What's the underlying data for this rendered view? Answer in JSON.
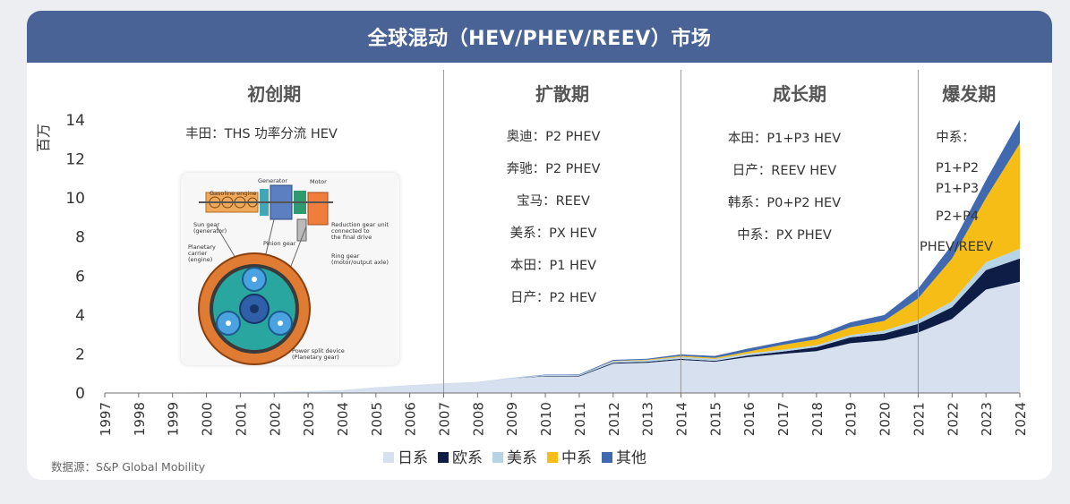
{
  "title": "全球混动（HEV/PHEV/REEV）市场",
  "source": "数据源：S&P Global Mobility",
  "colors": {
    "banner": "#4a6396",
    "japan": "#d6e0ef",
    "europe": "#0d1d46",
    "us": "#b7d3e6",
    "china": "#f6bd16",
    "other": "#4169b0",
    "axis": "#6e6e6e"
  },
  "phases": [
    {
      "name": "初创期",
      "lines": [
        "丰田：THS 功率分流 HEV"
      ]
    },
    {
      "name": "扩散期",
      "lines": [
        "奥迪：P2 PHEV",
        "奔驰：P2 PHEV",
        "宝马：REEV",
        "美系：PX HEV",
        "本田：P1 HEV",
        "日产：P2 HEV"
      ]
    },
    {
      "name": "成长期",
      "lines": [
        "本田：P1+P3 HEV",
        "日产：REEV  HEV",
        "韩系：P0+P2 HEV",
        "中系：PX      PHEV"
      ]
    },
    {
      "name": "爆发期",
      "lines": [
        "中系：",
        "P1+P2",
        "P1+P3",
        "P2+P4",
        "PHEV/REEV"
      ]
    }
  ],
  "illustration": {
    "labels": [
      "Gasoline engine",
      "Generator",
      "Motor",
      "Sun gear\n(generator)",
      "Reduction gear unit\nconnected to\nthe final drive",
      "Planetary\ncarrier\n(engine)",
      "Pinion gear",
      "Ring gear\n(motor/output axle)",
      "Power split device\n(Planetary gear)"
    ]
  },
  "chart_data": {
    "type": "area",
    "stacked": true,
    "title": "全球混动（HEV/PHEV/REEV）市场",
    "ylabel": "百万",
    "xlabel": "",
    "ylim": [
      0,
      14
    ],
    "yticks": [
      0,
      2,
      4,
      6,
      8,
      10,
      12,
      14
    ],
    "x": [
      "1997",
      "1998",
      "1999",
      "2000",
      "2001",
      "2002",
      "2003",
      "2004",
      "2005",
      "2006",
      "2007",
      "2008",
      "2009",
      "2010",
      "2011",
      "2012",
      "2013",
      "2014",
      "2015",
      "2016",
      "2017",
      "2018",
      "2019",
      "2020",
      "2021",
      "2022",
      "2023",
      "2024"
    ],
    "phase_boundaries": [
      "2007",
      "2014",
      "2021"
    ],
    "series": [
      {
        "name": "日系",
        "values": [
          0.01,
          0.02,
          0.02,
          0.03,
          0.04,
          0.05,
          0.09,
          0.15,
          0.3,
          0.4,
          0.5,
          0.55,
          0.75,
          0.85,
          0.85,
          1.5,
          1.55,
          1.7,
          1.6,
          1.85,
          2.0,
          2.15,
          2.55,
          2.7,
          3.1,
          3.8,
          5.3,
          5.7
        ]
      },
      {
        "name": "欧系",
        "values": [
          0,
          0,
          0,
          0,
          0,
          0,
          0,
          0,
          0,
          0,
          0,
          0,
          0,
          0.02,
          0.03,
          0.05,
          0.05,
          0.05,
          0.05,
          0.08,
          0.12,
          0.2,
          0.3,
          0.35,
          0.45,
          0.6,
          1.0,
          1.2
        ]
      },
      {
        "name": "美系",
        "values": [
          0,
          0,
          0,
          0,
          0,
          0,
          0,
          0,
          0,
          0,
          0,
          0.02,
          0.03,
          0.05,
          0.05,
          0.08,
          0.08,
          0.1,
          0.1,
          0.1,
          0.1,
          0.1,
          0.12,
          0.15,
          0.2,
          0.3,
          0.4,
          0.5
        ]
      },
      {
        "name": "中系",
        "values": [
          0,
          0,
          0,
          0,
          0,
          0,
          0,
          0,
          0,
          0,
          0,
          0,
          0,
          0,
          0,
          0.02,
          0.03,
          0.05,
          0.05,
          0.1,
          0.25,
          0.3,
          0.4,
          0.5,
          1.1,
          2.2,
          3.3,
          5.4
        ]
      },
      {
        "name": "其他",
        "values": [
          0,
          0,
          0,
          0,
          0,
          0,
          0,
          0,
          0,
          0,
          0,
          0,
          0,
          0.02,
          0.03,
          0.05,
          0.05,
          0.08,
          0.1,
          0.15,
          0.15,
          0.2,
          0.25,
          0.3,
          0.5,
          0.7,
          0.9,
          1.2
        ]
      }
    ]
  }
}
